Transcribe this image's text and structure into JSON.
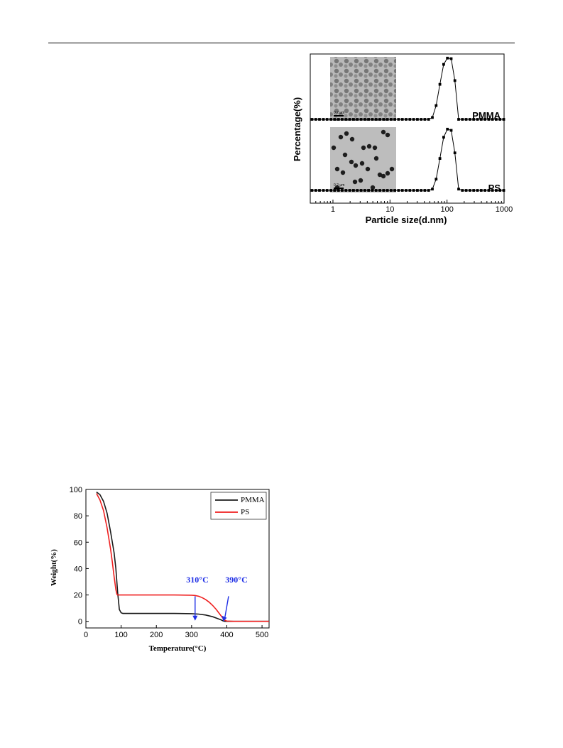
{
  "page": {
    "header_rule": true
  },
  "chart_data": [
    {
      "type": "line",
      "xlabel": "Particle size(d.nm)",
      "ylabel": "Percentage(%)",
      "x_scale": "log",
      "xlim": [
        0.4,
        1000
      ],
      "xticks": [
        "1",
        "10",
        "100",
        "1000"
      ],
      "panels": [
        {
          "name": "PMMA",
          "inset_scale_label": "0.2 μm",
          "x": [
            0.43,
            0.5,
            0.58,
            0.68,
            0.79,
            0.92,
            1.07,
            1.25,
            1.45,
            1.69,
            1.97,
            2.29,
            2.67,
            3.11,
            3.62,
            4.21,
            4.9,
            5.7,
            6.63,
            7.72,
            8.98,
            10.45,
            12.16,
            14.15,
            16.47,
            19.16,
            22.3,
            25.95,
            30.19,
            35.13,
            40.88,
            47.57,
            55.36,
            64.42,
            74.96,
            87.23,
            101.5,
            118.1,
            137.4,
            159.9,
            186.1,
            216.6,
            252,
            293.2,
            341.2,
            397.1,
            462.1,
            537.7,
            625.7,
            728.1,
            847.1,
            985.8
          ],
          "y": [
            0,
            0,
            0,
            0,
            0,
            0,
            0,
            0,
            0,
            0,
            0,
            0,
            0,
            0,
            0,
            0,
            0,
            0,
            0,
            0,
            0,
            0,
            0,
            0,
            0,
            0,
            0,
            0,
            0,
            0,
            0,
            0,
            3,
            22,
            56,
            88,
            98,
            97,
            62,
            0,
            0,
            0,
            0,
            0,
            0,
            0,
            0,
            0,
            0,
            0,
            0,
            0
          ]
        },
        {
          "name": "PS",
          "inset_scale_label": "0.2 μm",
          "x": [
            0.43,
            0.5,
            0.58,
            0.68,
            0.79,
            0.92,
            1.07,
            1.25,
            1.45,
            1.69,
            1.97,
            2.29,
            2.67,
            3.11,
            3.62,
            4.21,
            4.9,
            5.7,
            6.63,
            7.72,
            8.98,
            10.45,
            12.16,
            14.15,
            16.47,
            19.16,
            22.3,
            25.95,
            30.19,
            35.13,
            40.88,
            47.57,
            55.36,
            64.42,
            74.96,
            87.23,
            101.5,
            118.1,
            137.4,
            159.9,
            186.1,
            216.6,
            252,
            293.2,
            341.2,
            397.1,
            462.1,
            537.7,
            625.7,
            728.1,
            847.1,
            985.8
          ],
          "y": [
            0,
            0,
            0,
            0,
            0,
            0,
            0,
            0,
            0,
            0,
            0,
            0,
            0,
            0,
            0,
            0,
            0,
            0,
            0,
            0,
            0,
            0,
            0,
            0,
            0,
            0,
            0,
            0,
            0,
            0,
            0,
            0,
            2,
            18,
            51,
            85,
            98,
            96,
            60,
            2,
            0,
            0,
            0,
            0,
            0,
            0,
            0,
            0,
            0,
            0,
            0,
            0
          ]
        }
      ]
    },
    {
      "type": "line",
      "xlabel": "Temperature(°C)",
      "ylabel": "Weight(%)",
      "xlim": [
        0,
        520
      ],
      "ylim": [
        -5,
        100
      ],
      "xticks": [
        0,
        100,
        200,
        300,
        400,
        500
      ],
      "yticks": [
        0,
        20,
        40,
        60,
        80,
        100
      ],
      "legend_position": "top-right",
      "series": [
        {
          "name": "PMMA",
          "color": "#1a1a1a",
          "x": [
            30,
            40,
            50,
            60,
            70,
            80,
            85,
            90,
            95,
            100,
            105,
            110,
            150,
            200,
            250,
            300,
            320,
            340,
            360,
            375,
            385,
            390,
            395,
            400,
            420,
            450,
            500,
            520
          ],
          "y": [
            98,
            96,
            91,
            82,
            68,
            52,
            40,
            22,
            9,
            6.5,
            6,
            6,
            6,
            6,
            6,
            5.8,
            5.5,
            4.8,
            3.5,
            2,
            1,
            0.3,
            0,
            0,
            0,
            0,
            0,
            0
          ]
        },
        {
          "name": "PS",
          "color": "#ef1f1f",
          "x": [
            30,
            40,
            50,
            60,
            70,
            75,
            80,
            85,
            88,
            90,
            95,
            100,
            150,
            200,
            250,
            300,
            310,
            320,
            330,
            340,
            350,
            360,
            370,
            380,
            390,
            395,
            400,
            420,
            450,
            500,
            520
          ],
          "y": [
            97,
            92,
            84,
            71,
            55,
            45,
            34,
            24,
            20.5,
            20,
            20,
            20,
            20,
            20,
            20,
            19.8,
            19.6,
            19,
            18,
            16.5,
            14.5,
            12,
            9,
            5.5,
            2,
            0.8,
            0.2,
            0,
            0,
            0,
            0
          ]
        }
      ],
      "annotations": [
        {
          "text": "310°C",
          "x": 310,
          "y": 0,
          "color": "#1f2fe6"
        },
        {
          "text": "390°C",
          "x": 390,
          "y": 0,
          "color": "#1f2fe6"
        }
      ]
    }
  ]
}
